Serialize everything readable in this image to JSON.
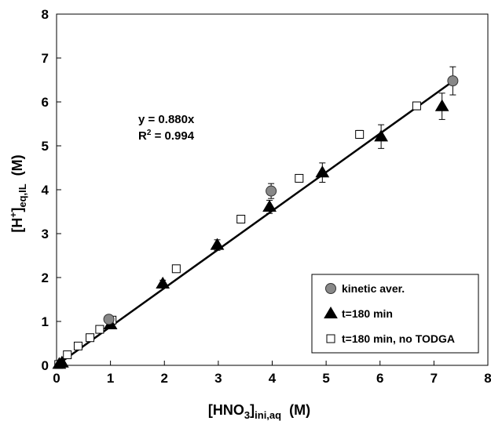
{
  "chart_data": {
    "type": "scatter",
    "xlabel": {
      "main": "[HNO",
      "sub1": "3",
      "mid": "]",
      "sub2": "ini,aq",
      "unit": "(M)"
    },
    "ylabel": {
      "main": "[H",
      "sup": "+",
      "mid": "]",
      "sub": "eq,IL",
      "unit": "(M)"
    },
    "xlim": [
      0,
      8
    ],
    "ylim": [
      0,
      8
    ],
    "x_ticks": [
      "0",
      "1",
      "2",
      "3",
      "4",
      "5",
      "6",
      "7",
      "8"
    ],
    "y_ticks": [
      "0",
      "1",
      "2",
      "3",
      "4",
      "5",
      "6",
      "7",
      "8"
    ],
    "grid": false,
    "fit": {
      "slope": 0.88,
      "equation": "y = 0.880x",
      "r2_label": "R",
      "r2_sup": "2",
      "r2_value": " = 0.994"
    },
    "legend": {
      "placement": "bottom-right"
    },
    "series": [
      {
        "name": "kinetic aver.",
        "marker": "circle",
        "color": "#888888",
        "points": [
          {
            "x": 0.97,
            "y": 1.05,
            "err": 0.04
          },
          {
            "x": 3.98,
            "y": 3.97,
            "err": 0.17
          },
          {
            "x": 7.35,
            "y": 6.48,
            "err": 0.32
          }
        ]
      },
      {
        "name": "t=180 min",
        "marker": "triangle",
        "color": "#000000",
        "points": [
          {
            "x": 0.05,
            "y": 0.03,
            "err": 0.0
          },
          {
            "x": 0.1,
            "y": 0.06,
            "err": 0.0
          },
          {
            "x": 1.0,
            "y": 0.93,
            "err": 0.05
          },
          {
            "x": 1.97,
            "y": 1.86,
            "err": 0.08
          },
          {
            "x": 2.98,
            "y": 2.74,
            "err": 0.12
          },
          {
            "x": 3.95,
            "y": 3.61,
            "err": 0.15
          },
          {
            "x": 4.93,
            "y": 4.39,
            "err": 0.22
          },
          {
            "x": 6.02,
            "y": 5.21,
            "err": 0.27
          },
          {
            "x": 7.15,
            "y": 5.9,
            "err": 0.3
          }
        ]
      },
      {
        "name": "t=180 min, no TODGA",
        "marker": "square",
        "color": "#ffffff",
        "points": [
          {
            "x": 0.04,
            "y": 0.02,
            "err": 0.0
          },
          {
            "x": 0.2,
            "y": 0.24,
            "err": 0.02
          },
          {
            "x": 0.4,
            "y": 0.44,
            "err": 0.02
          },
          {
            "x": 0.62,
            "y": 0.63,
            "err": 0.03
          },
          {
            "x": 0.8,
            "y": 0.82,
            "err": 0.03
          },
          {
            "x": 1.03,
            "y": 1.03,
            "err": 0.04
          },
          {
            "x": 2.22,
            "y": 2.2,
            "err": 0.06
          },
          {
            "x": 3.42,
            "y": 3.33,
            "err": 0.07
          },
          {
            "x": 4.5,
            "y": 4.26,
            "err": 0.08
          },
          {
            "x": 5.62,
            "y": 5.26,
            "err": 0.09
          },
          {
            "x": 6.68,
            "y": 5.91,
            "err": 0.09
          }
        ]
      }
    ]
  }
}
